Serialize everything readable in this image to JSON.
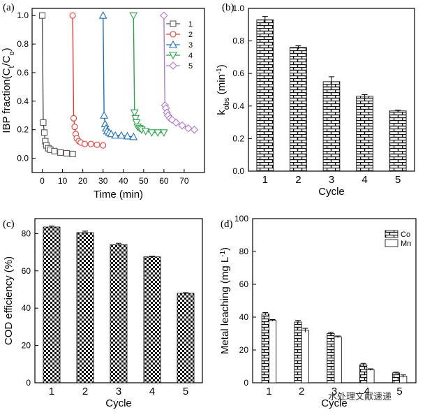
{
  "watermark": "水处理文献速递",
  "chart_data": [
    {
      "panel": "(a)",
      "type": "line",
      "xlabel": "Time (min)",
      "ylabel_main": "IBP fraction(C",
      "ylabel_sub1": "t",
      "ylabel_mid": "/C",
      "ylabel_sub2": "o",
      "ylabel_end": ")",
      "xlim": [
        -5,
        80
      ],
      "ylim": [
        -0.1,
        1.05
      ],
      "xticks": [
        "0",
        "10",
        "20",
        "30",
        "40",
        "50",
        "60",
        "70"
      ],
      "xtick_values": [
        0,
        10,
        20,
        30,
        40,
        50,
        60,
        70
      ],
      "yticks": [
        "0.0",
        "0.2",
        "0.4",
        "0.6",
        "0.8",
        "1.0"
      ],
      "ytick_values": [
        0,
        0.2,
        0.4,
        0.6,
        0.8,
        1.0
      ],
      "legend_position": "top-right",
      "series": [
        {
          "name": "1",
          "color": "#555555",
          "marker": "square",
          "x": [
            0,
            0.5,
            1,
            1.5,
            2,
            3,
            4,
            6,
            9,
            12,
            15
          ],
          "y": [
            1.0,
            0.25,
            0.18,
            0.12,
            0.09,
            0.07,
            0.06,
            0.05,
            0.04,
            0.035,
            0.03
          ]
        },
        {
          "name": "2",
          "color": "#e0403a",
          "marker": "circle",
          "x": [
            15,
            15.5,
            16,
            16.5,
            17,
            18,
            19,
            21,
            24,
            27,
            30
          ],
          "y": [
            1.0,
            0.28,
            0.22,
            0.17,
            0.14,
            0.12,
            0.11,
            0.1,
            0.1,
            0.095,
            0.09
          ]
        },
        {
          "name": "3",
          "color": "#1f6fb4",
          "marker": "triangle-up",
          "x": [
            30,
            30.5,
            31,
            31.5,
            32,
            33,
            34,
            36,
            39,
            42,
            45
          ],
          "y": [
            1.0,
            0.3,
            0.24,
            0.21,
            0.19,
            0.18,
            0.17,
            0.16,
            0.16,
            0.155,
            0.15
          ]
        },
        {
          "name": "4",
          "color": "#2fa04a",
          "marker": "triangle-down",
          "x": [
            45,
            45.5,
            46,
            46.5,
            47,
            48,
            49,
            51,
            54,
            57,
            60
          ],
          "y": [
            1.0,
            0.32,
            0.28,
            0.25,
            0.22,
            0.21,
            0.2,
            0.19,
            0.18,
            0.18,
            0.18
          ]
        },
        {
          "name": "5",
          "color": "#b07ac8",
          "marker": "diamond",
          "x": [
            60,
            60.5,
            61,
            61.5,
            62,
            63,
            64,
            66,
            69,
            72,
            75
          ],
          "y": [
            1.0,
            0.37,
            0.35,
            0.32,
            0.3,
            0.28,
            0.27,
            0.25,
            0.23,
            0.21,
            0.2
          ]
        }
      ]
    },
    {
      "panel": "(b)",
      "type": "bar",
      "xlabel": "Cycle",
      "ylabel_main": "k",
      "ylabel_sub": "obs",
      "ylabel_end": " (min",
      "ylabel_sup": "-1",
      "ylabel_close": ")",
      "categories": [
        "1",
        "2",
        "3",
        "4",
        "5"
      ],
      "values": [
        0.93,
        0.76,
        0.55,
        0.46,
        0.37
      ],
      "errors": [
        0.02,
        0.01,
        0.03,
        0.01,
        0.005
      ],
      "ylim": [
        0,
        1.0
      ],
      "yticks": [
        "0.0",
        "0.2",
        "0.4",
        "0.6",
        "0.8",
        "1.0"
      ],
      "ytick_values": [
        0,
        0.2,
        0.4,
        0.6,
        0.8,
        1.0
      ],
      "pattern": "brick"
    },
    {
      "panel": "(c)",
      "type": "bar",
      "xlabel": "Cycle",
      "ylabel": "COD efficiency (%)",
      "categories": [
        "1",
        "2",
        "3",
        "4",
        "5"
      ],
      "values": [
        83.5,
        80.5,
        74,
        67.5,
        48
      ],
      "errors": [
        0.5,
        0.8,
        0.8,
        0.3,
        0.3
      ],
      "ylim": [
        0,
        88
      ],
      "yticks": [
        "0",
        "20",
        "40",
        "60",
        "80"
      ],
      "ytick_values": [
        0,
        20,
        40,
        60,
        80
      ],
      "pattern": "checker"
    },
    {
      "panel": "(d)",
      "type": "bar",
      "xlabel": "Cycle",
      "ylabel_main": "Metal leaching (mg L",
      "ylabel_sup": "-1",
      "ylabel_close": ")",
      "categories": [
        "1",
        "2",
        "3",
        "4",
        "5"
      ],
      "ylim": [
        0,
        100
      ],
      "yticks": [
        "0",
        "20",
        "40",
        "60",
        "80",
        "100"
      ],
      "ytick_values": [
        0,
        20,
        40,
        60,
        80,
        100
      ],
      "legend_position": "top-right",
      "series": [
        {
          "name": "Co",
          "values": [
            42,
            37,
            30,
            11,
            6
          ],
          "errors": [
            0.8,
            1.0,
            0.8,
            0.8,
            0.5
          ],
          "pattern": "brick"
        },
        {
          "name": "Mn",
          "values": [
            38,
            32,
            28,
            8,
            4
          ],
          "errors": [
            0.5,
            1.2,
            0.5,
            0.5,
            0.8
          ],
          "pattern": "plain"
        }
      ]
    }
  ]
}
